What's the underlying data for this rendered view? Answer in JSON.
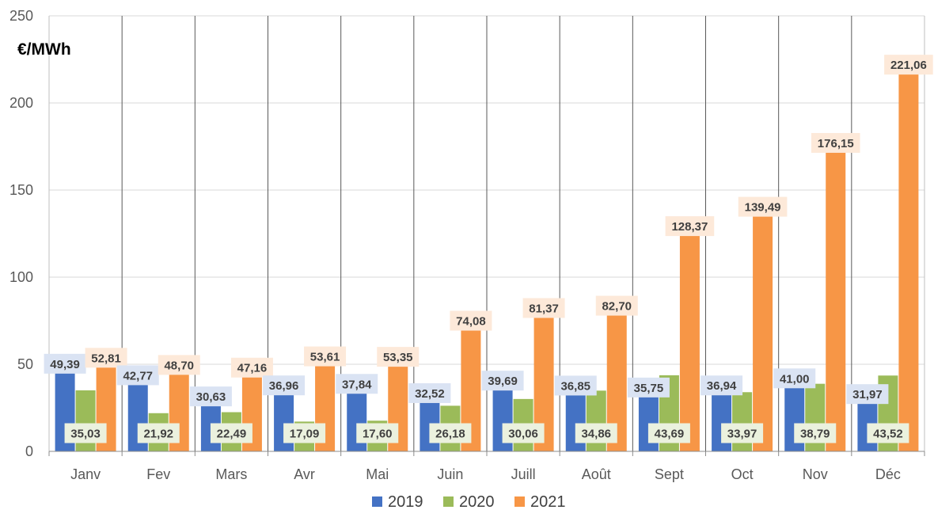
{
  "chart_data": {
    "type": "bar",
    "title": "",
    "ylabel": "€/MWh",
    "xlabel": "",
    "ylim": [
      0,
      250
    ],
    "yticks": [
      "0",
      "50",
      "100",
      "150",
      "200",
      "250"
    ],
    "grid": true,
    "legend_position": "bottom-center",
    "categories": [
      "Janv",
      "Fev",
      "Mars",
      "Avr",
      "Mai",
      "Juin",
      "Juill",
      "Août",
      "Sept",
      "Oct",
      "Nov",
      "Déc"
    ],
    "series": [
      {
        "name": "2019",
        "color": "#4472C4",
        "label_bg": "#DAE3F3",
        "values": [
          49.39,
          42.77,
          30.63,
          36.96,
          37.84,
          32.52,
          39.69,
          36.85,
          35.75,
          36.94,
          41.0,
          31.97
        ],
        "labels": [
          "49,39",
          "42,77",
          "30,63",
          "36,96",
          "37,84",
          "32,52",
          "39,69",
          "36,85",
          "35,75",
          "36,94",
          "41,00",
          "31,97"
        ]
      },
      {
        "name": "2020",
        "color": "#9BBB59",
        "label_bg": "#EBF1DE",
        "values": [
          35.03,
          21.92,
          22.49,
          17.09,
          17.6,
          26.18,
          30.06,
          34.86,
          43.69,
          33.97,
          38.79,
          43.52
        ],
        "labels": [
          "35,03",
          "21,92",
          "22,49",
          "17,09",
          "17,60",
          "26,18",
          "30,06",
          "34,86",
          "43,69",
          "33,97",
          "38,79",
          "43,52"
        ]
      },
      {
        "name": "2021",
        "color": "#F79646",
        "label_bg": "#FDE9D9",
        "values": [
          52.81,
          48.7,
          47.16,
          53.61,
          53.35,
          74.08,
          81.37,
          82.7,
          128.37,
          139.49,
          176.15,
          221.06
        ],
        "labels": [
          "52,81",
          "48,70",
          "47,16",
          "53,61",
          "53,35",
          "74,08",
          "81,37",
          "82,70",
          "128,37",
          "139,49",
          "176,15",
          "221,06"
        ]
      }
    ]
  }
}
